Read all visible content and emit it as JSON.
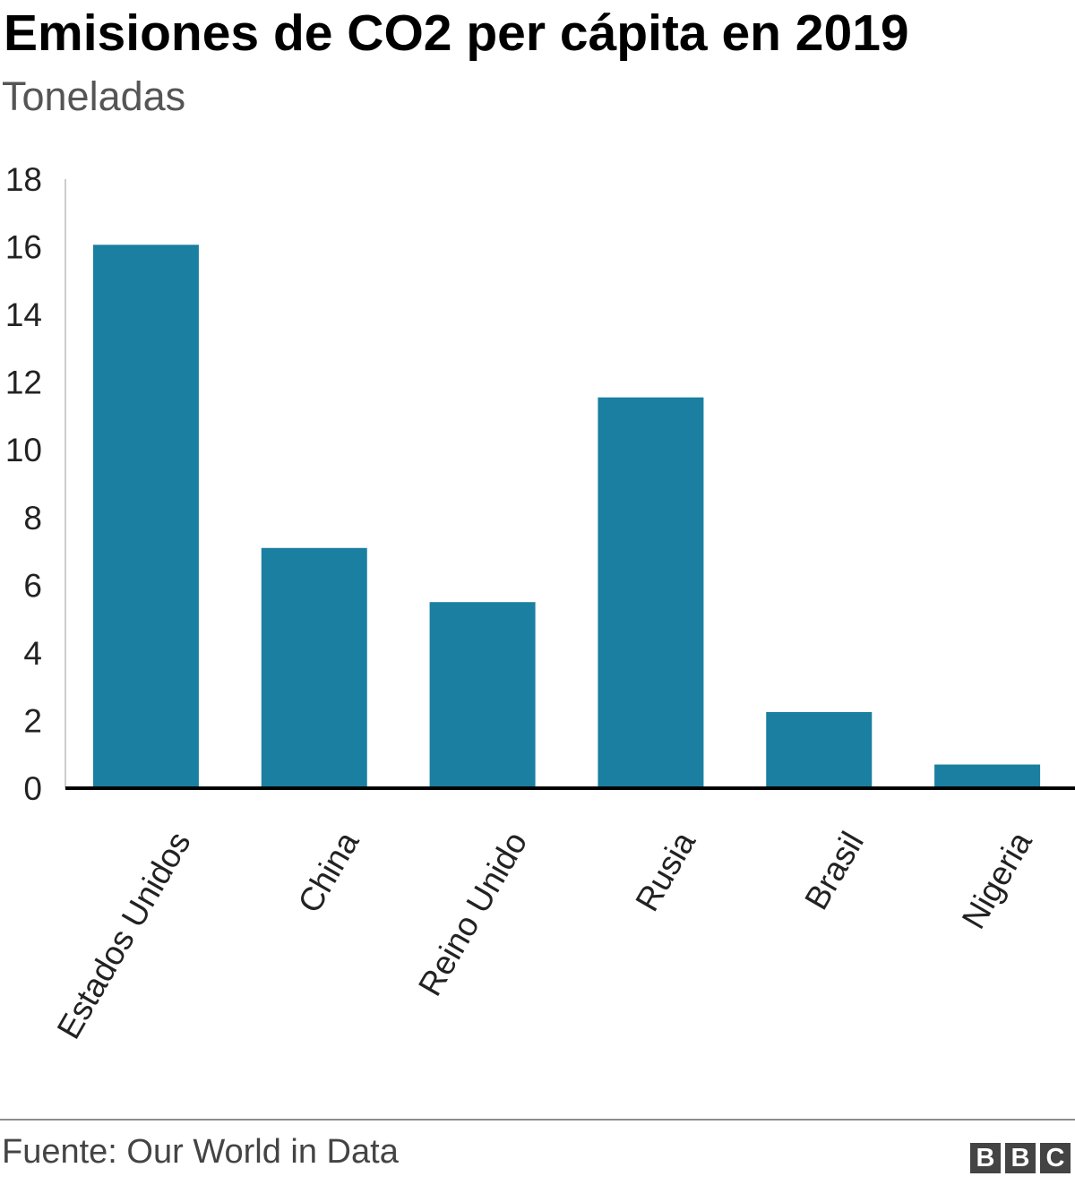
{
  "chart_data": {
    "type": "bar",
    "title": "Emisiones de CO2 per cápita en 2019",
    "subtitle": "Toneladas",
    "categories": [
      "Estados Unidos",
      "China",
      "Reino Unido",
      "Rusia",
      "Brasil",
      "Nigeria"
    ],
    "values": [
      16.06,
      7.1,
      5.5,
      11.55,
      2.25,
      0.7
    ],
    "ylim": [
      0,
      18
    ],
    "yticks": [
      "0",
      "2",
      "4",
      "6",
      "8",
      "10",
      "12",
      "14",
      "16",
      "18"
    ],
    "xlabel": "",
    "ylabel": "",
    "grid": false,
    "bar_color": "#1a7fa0"
  },
  "footer": {
    "source": "Fuente: Our World in Data",
    "logo": [
      "B",
      "B",
      "C"
    ]
  }
}
